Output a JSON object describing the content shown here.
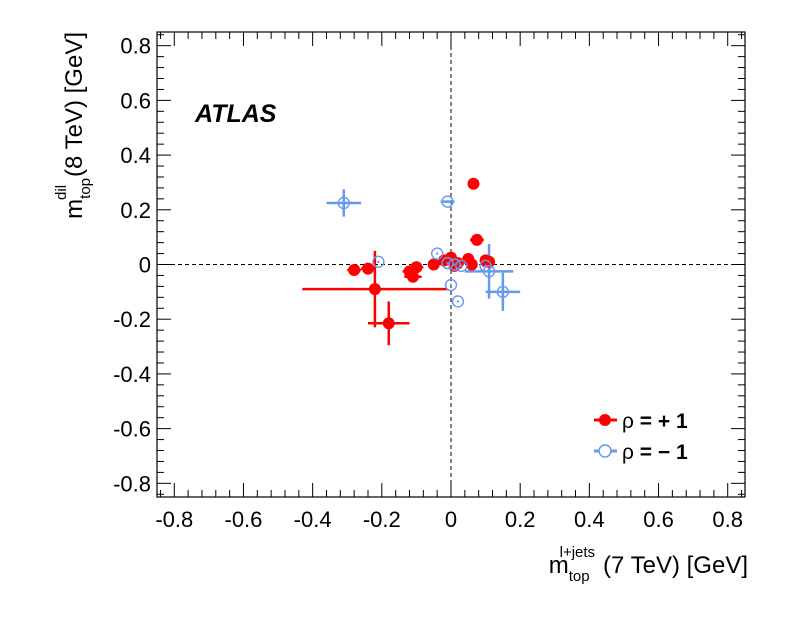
{
  "chart_data": {
    "type": "scatter",
    "xlabel": {
      "main": "m",
      "sub": "top",
      "sup": "l+jets",
      "rest": "(7 TeV) [GeV]"
    },
    "ylabel": {
      "main": "m",
      "sub": "top",
      "sup": "dil",
      "rest": "(8 TeV) [GeV]"
    },
    "xlim": [
      -0.85,
      0.85
    ],
    "ylim": [
      -0.85,
      0.85
    ],
    "xticks": [
      "-0.8",
      "-0.6",
      "-0.4",
      "-0.2",
      "0",
      "0.2",
      "0.4",
      "0.6",
      "0.8"
    ],
    "yticks": [
      "-0.8",
      "-0.6",
      "-0.4",
      "-0.2",
      "0",
      "0.2",
      "0.4",
      "0.6",
      "0.8"
    ],
    "xtick_values": [
      -0.8,
      -0.6,
      -0.4,
      -0.2,
      0,
      0.2,
      0.4,
      0.6,
      0.8
    ],
    "ytick_values": [
      -0.8,
      -0.6,
      -0.4,
      -0.2,
      0,
      0.2,
      0.4,
      0.6,
      0.8
    ],
    "annotation": "ATLAS",
    "legend_position": "bottom-right",
    "colors": {
      "plus": "#ff0000",
      "minus": "#6699ee"
    },
    "series": [
      {
        "name": "ρ = +1",
        "legend_symbol": "ρ",
        "legend_rest": " = + 1",
        "marker": "filled-circle",
        "points": [
          {
            "x": -0.28,
            "y": -0.02,
            "xerr": 0.02,
            "yerr": 0.0
          },
          {
            "x": -0.24,
            "y": -0.015,
            "xerr": 0.02,
            "yerr": 0.0
          },
          {
            "x": -0.22,
            "y": -0.09,
            "xerr": 0.21,
            "yerr": 0.14
          },
          {
            "x": -0.18,
            "y": -0.215,
            "xerr": 0.06,
            "yerr": 0.08
          },
          {
            "x": -0.12,
            "y": -0.025,
            "xerr": 0.02,
            "yerr": 0.0
          },
          {
            "x": -0.11,
            "y": -0.045,
            "xerr": 0.025,
            "yerr": 0.0
          },
          {
            "x": -0.1,
            "y": -0.01,
            "xerr": 0.02,
            "yerr": 0.0
          },
          {
            "x": -0.05,
            "y": 0.0,
            "xerr": 0.015,
            "yerr": 0.0
          },
          {
            "x": -0.02,
            "y": 0.015,
            "xerr": 0.01,
            "yerr": 0.0
          },
          {
            "x": 0.0,
            "y": 0.025,
            "xerr": 0.015,
            "yerr": 0.0
          },
          {
            "x": 0.01,
            "y": -0.005,
            "xerr": 0.01,
            "yerr": 0.0
          },
          {
            "x": 0.02,
            "y": 0.005,
            "xerr": 0.01,
            "yerr": 0.0
          },
          {
            "x": 0.05,
            "y": 0.02,
            "xerr": 0.01,
            "yerr": 0.0
          },
          {
            "x": 0.06,
            "y": 0.0,
            "xerr": 0.01,
            "yerr": 0.0
          },
          {
            "x": 0.065,
            "y": 0.295,
            "xerr": 0.015,
            "yerr": 0.0
          },
          {
            "x": 0.075,
            "y": 0.09,
            "xerr": 0.02,
            "yerr": 0.0
          },
          {
            "x": 0.1,
            "y": 0.015,
            "xerr": 0.01,
            "yerr": 0.0
          },
          {
            "x": 0.11,
            "y": 0.01,
            "xerr": 0.015,
            "yerr": 0.0
          }
        ]
      },
      {
        "name": "ρ = −1",
        "legend_symbol": "ρ",
        "legend_rest": " = − 1",
        "marker": "open-circle",
        "points": [
          {
            "x": -0.31,
            "y": 0.225,
            "xerr": 0.05,
            "yerr": 0.05
          },
          {
            "x": -0.21,
            "y": 0.01,
            "xerr": 0.0,
            "yerr": 0.0
          },
          {
            "x": -0.04,
            "y": 0.04,
            "xerr": 0.0,
            "yerr": 0.0
          },
          {
            "x": -0.01,
            "y": 0.23,
            "xerr": 0.02,
            "yerr": 0.0
          },
          {
            "x": -0.01,
            "y": 0.005,
            "xerr": 0.0,
            "yerr": 0.0
          },
          {
            "x": 0.0,
            "y": -0.075,
            "xerr": 0.0,
            "yerr": 0.0
          },
          {
            "x": 0.01,
            "y": 0.0,
            "xerr": 0.0,
            "yerr": 0.0
          },
          {
            "x": 0.02,
            "y": -0.135,
            "xerr": 0.0,
            "yerr": 0.0
          },
          {
            "x": 0.03,
            "y": -0.005,
            "xerr": 0.0,
            "yerr": 0.0
          },
          {
            "x": 0.1,
            "y": -0.005,
            "xerr": 0.01,
            "yerr": 0.0
          },
          {
            "x": 0.11,
            "y": -0.025,
            "xerr": 0.07,
            "yerr": 0.1
          },
          {
            "x": 0.15,
            "y": -0.1,
            "xerr": 0.05,
            "yerr": 0.07
          }
        ]
      }
    ]
  }
}
